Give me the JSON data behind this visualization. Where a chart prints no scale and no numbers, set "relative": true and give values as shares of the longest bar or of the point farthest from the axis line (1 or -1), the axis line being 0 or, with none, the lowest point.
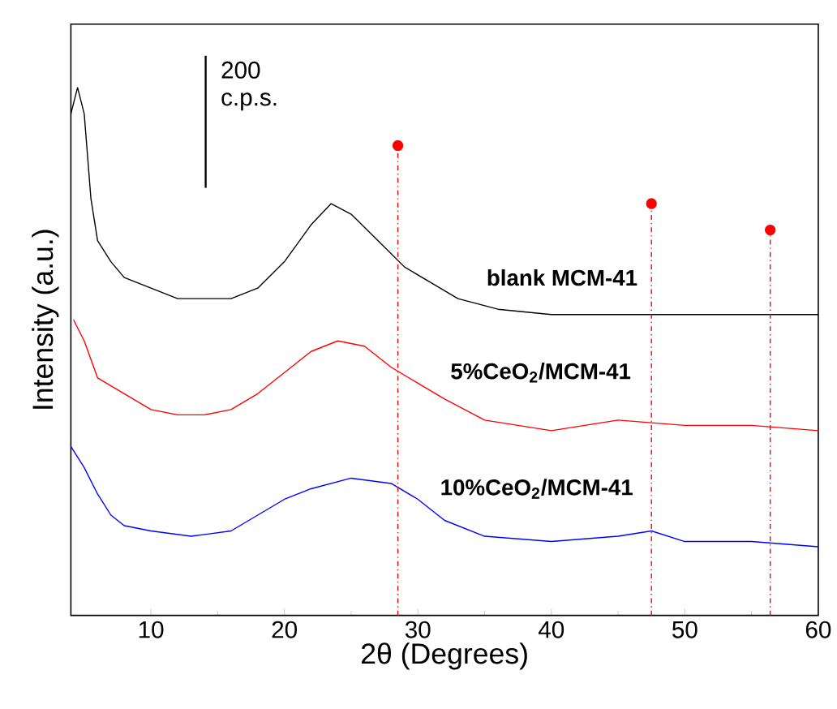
{
  "chart_data": {
    "type": "line",
    "relative": true,
    "xlabel": "2θ (Degrees)",
    "ylabel": "Intensity (a.u.)",
    "xlim": [
      4,
      60
    ],
    "xticks": [
      10,
      20,
      30,
      40,
      50,
      60
    ],
    "annotations": [
      "200 c.p.s."
    ],
    "series": [
      {
        "name": "blank MCM-41",
        "color": "#000000",
        "x": [
          4,
          4.5,
          5,
          5.5,
          6,
          7,
          8,
          10,
          12,
          14,
          16,
          18,
          20,
          22,
          23.5,
          25,
          27,
          29,
          31,
          33,
          36,
          40,
          45,
          50,
          55,
          60
        ],
        "values": [
          0.95,
          1.0,
          0.95,
          0.79,
          0.71,
          0.67,
          0.64,
          0.62,
          0.6,
          0.6,
          0.6,
          0.62,
          0.67,
          0.74,
          0.78,
          0.76,
          0.71,
          0.66,
          0.63,
          0.6,
          0.58,
          0.57,
          0.57,
          0.57,
          0.57,
          0.57
        ]
      },
      {
        "name": "5%CeO$_{2}$/MCM-41",
        "color": "#ff0000",
        "x": [
          4.2,
          5,
          6,
          8,
          10,
          12,
          14,
          16,
          18,
          20,
          22,
          24,
          26,
          28,
          30,
          32,
          35,
          40,
          45,
          50,
          55,
          60
        ],
        "values": [
          0.56,
          0.52,
          0.45,
          0.42,
          0.39,
          0.38,
          0.38,
          0.39,
          0.42,
          0.46,
          0.5,
          0.52,
          0.51,
          0.47,
          0.44,
          0.41,
          0.37,
          0.35,
          0.37,
          0.36,
          0.36,
          0.35
        ]
      },
      {
        "name": "10%CeO$_{2}$/MCM-41",
        "color": "#0000ff",
        "x": [
          4,
          5,
          6,
          7,
          8,
          10,
          13,
          16,
          18,
          20,
          22,
          25,
          28,
          30,
          32,
          35,
          40,
          45,
          47.5,
          50,
          55,
          60
        ],
        "values": [
          0.32,
          0.28,
          0.23,
          0.19,
          0.17,
          0.16,
          0.15,
          0.16,
          0.19,
          0.22,
          0.24,
          0.26,
          0.25,
          0.22,
          0.18,
          0.15,
          0.14,
          0.15,
          0.16,
          0.14,
          0.14,
          0.13
        ]
      },
      {
        "type": "lollipop",
        "color": "#ff0000",
        "marker": "circle",
        "line_style": "dashed",
        "x": [
          28.5,
          47.5,
          56.4
        ],
        "values": [
          0.89,
          0.78,
          0.73
        ]
      }
    ]
  }
}
